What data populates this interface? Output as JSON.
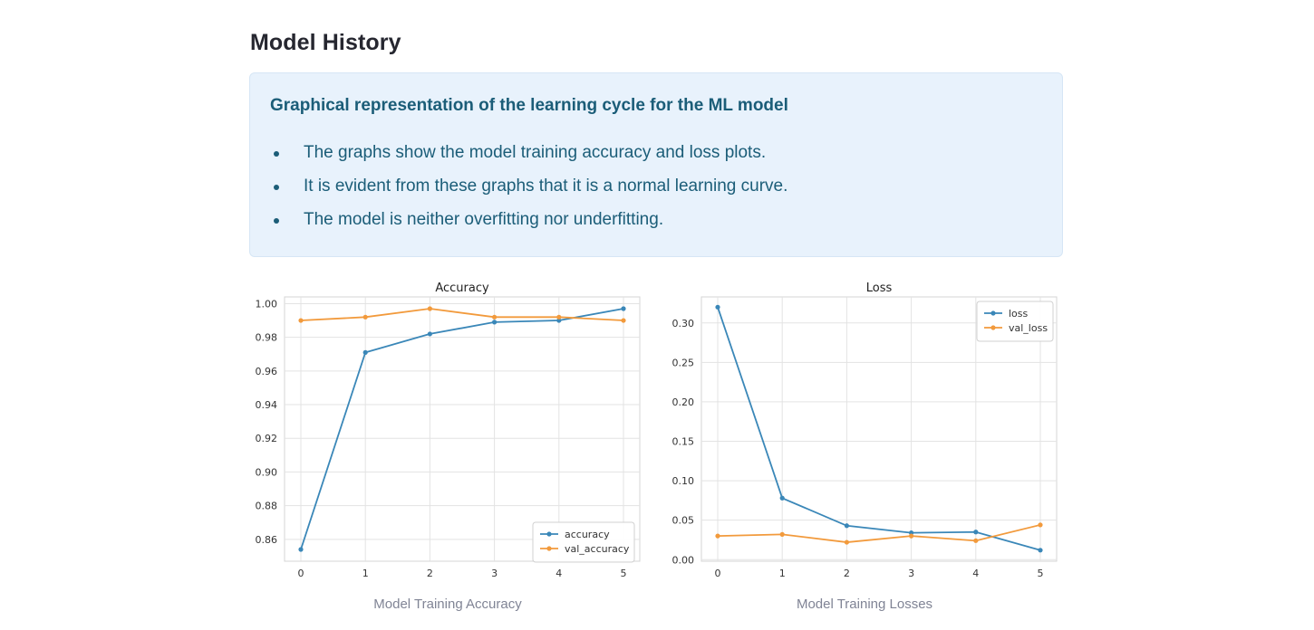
{
  "page": {
    "title": "Model History"
  },
  "info": {
    "heading": "Graphical representation of the learning cycle for the ML model",
    "bullets": [
      "The graphs show the model training accuracy and loss plots.",
      "It is evident from these graphs that it is a normal learning curve.",
      "The model is neither overfitting nor underfitting."
    ]
  },
  "captions": {
    "accuracy": "Model Training Accuracy",
    "loss": "Model Training Losses"
  },
  "colors": {
    "series_1": "#3a87b8",
    "series_2": "#f29a3c",
    "grid": "#e3e3e3"
  },
  "chart_data": [
    {
      "type": "line",
      "title": "Accuracy",
      "xlabel": "",
      "ylabel": "",
      "x": [
        0,
        1,
        2,
        3,
        4,
        5
      ],
      "xticks": [
        "0",
        "1",
        "2",
        "3",
        "4",
        "5"
      ],
      "yticks": [
        "0.86",
        "0.88",
        "0.90",
        "0.92",
        "0.94",
        "0.96",
        "0.98",
        "1.00"
      ],
      "ylim": [
        0.847,
        1.004
      ],
      "grid": true,
      "legend_position": "lower-right",
      "series": [
        {
          "name": "accuracy",
          "color": "#3a87b8",
          "values": [
            0.854,
            0.971,
            0.982,
            0.989,
            0.99,
            0.997
          ]
        },
        {
          "name": "val_accuracy",
          "color": "#f29a3c",
          "values": [
            0.99,
            0.992,
            0.997,
            0.992,
            0.992,
            0.99
          ]
        }
      ]
    },
    {
      "type": "line",
      "title": "Loss",
      "xlabel": "",
      "ylabel": "",
      "x": [
        0,
        1,
        2,
        3,
        4,
        5
      ],
      "xticks": [
        "0",
        "1",
        "2",
        "3",
        "4",
        "5"
      ],
      "yticks": [
        "0.00",
        "0.05",
        "0.10",
        "0.15",
        "0.20",
        "0.25",
        "0.30"
      ],
      "ylim": [
        -0.002,
        0.333
      ],
      "grid": true,
      "legend_position": "upper-right",
      "series": [
        {
          "name": "loss",
          "color": "#3a87b8",
          "values": [
            0.32,
            0.078,
            0.043,
            0.034,
            0.035,
            0.012
          ]
        },
        {
          "name": "val_loss",
          "color": "#f29a3c",
          "values": [
            0.03,
            0.032,
            0.022,
            0.03,
            0.024,
            0.044
          ]
        }
      ]
    }
  ]
}
